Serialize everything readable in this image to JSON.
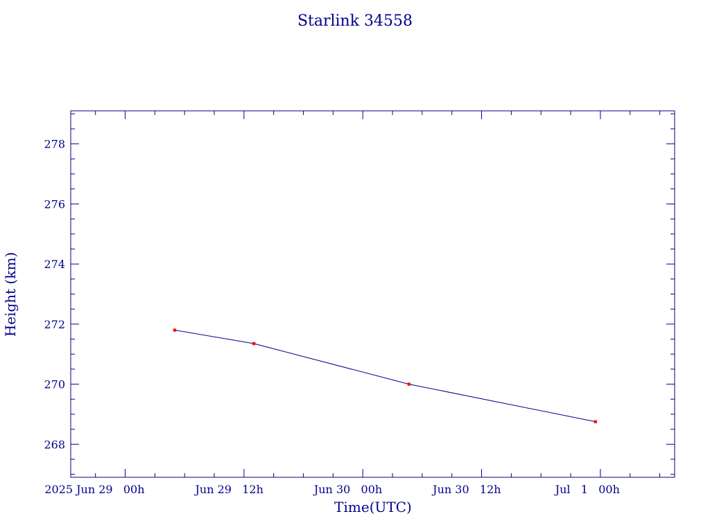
{
  "chart_data": {
    "type": "line",
    "title": "Starlink 34558",
    "xlabel": "Time(UTC)",
    "ylabel": "Height (km)",
    "x": [
      "2025-06-29 05:00",
      "2025-06-29 13:00",
      "2025-06-30 04:40",
      "2025-06-30 23:30"
    ],
    "series": [
      {
        "values": [
          271.8,
          271.35,
          270.0,
          268.75
        ]
      }
    ],
    "xlim": [
      "2025-06-28 18:30",
      "2025-07-01 07:30"
    ],
    "ylim": [
      266.9,
      279.1
    ],
    "x_ticks": [
      {
        "at": "2025-06-29 00:00",
        "label": "2025 Jun 29   00h"
      },
      {
        "at": "2025-06-29 12:00",
        "label": "Jun 29   12h"
      },
      {
        "at": "2025-06-30 00:00",
        "label": "Jun 30   00h"
      },
      {
        "at": "2025-06-30 12:00",
        "label": "Jun 30   12h"
      },
      {
        "at": "2025-07-01 00:00",
        "label": "Jul   1   00h"
      }
    ],
    "y_ticks": [
      268,
      270,
      272,
      274,
      276,
      278
    ],
    "grid": false,
    "colors": {
      "axes": "#00008b",
      "line": "#00008b",
      "markers": "#ff0000"
    }
  }
}
